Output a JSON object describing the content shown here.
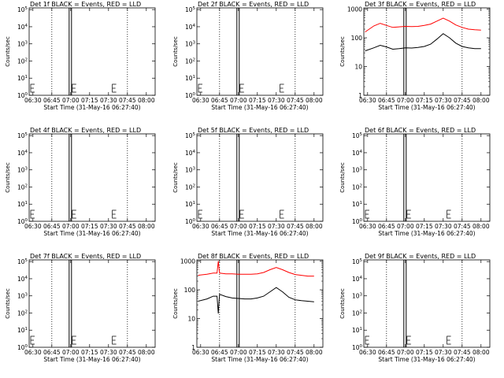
{
  "figure": {
    "xlabel": "Start Time (31-May-16 06:27:40)",
    "ylabel": "Counts/sec",
    "x_ticks": [
      "06:30",
      "06:45",
      "07:00",
      "07:15",
      "07:30",
      "07:45",
      "08:00"
    ],
    "colors": {
      "events": "#000000",
      "lld": "#ff0000",
      "axes": "#000000",
      "background": "#ffffff"
    }
  },
  "chart_data": [
    {
      "type": "line",
      "detector": "1f",
      "title": "Det 1f BLACK = Events, RED = LLD",
      "ylabel": "Counts/sec",
      "xlabel": "Start Time (31-May-16 06:27:40)",
      "y_scale": "log",
      "y_ticks": [
        "10^0",
        "10^1",
        "10^2",
        "10^3",
        "10^4",
        "10^5"
      ],
      "has_data": false,
      "series": []
    },
    {
      "type": "line",
      "detector": "2f",
      "title": "Det 2f BLACK = Events, RED = LLD",
      "ylabel": "Counts/sec",
      "xlabel": "Start Time (31-May-16 06:27:40)",
      "y_scale": "log",
      "y_ticks": [
        "10^0",
        "10^1",
        "10^2",
        "10^3",
        "10^4",
        "10^5"
      ],
      "has_data": false,
      "series": []
    },
    {
      "type": "line",
      "detector": "3f",
      "title": "Det 3f BLACK = Events, RED = LLD",
      "ylabel": "Counts/sec",
      "xlabel": "Start Time (31-May-16 06:27:40)",
      "y_scale": "log",
      "y_ticks": [
        "1",
        "10",
        "100",
        "1000"
      ],
      "has_data": true,
      "series": [
        {
          "name": "LLD",
          "color": "#ff0000",
          "x": [
            "06:28",
            "06:35",
            "06:40",
            "06:45",
            "06:50",
            "06:55",
            "07:00",
            "07:05",
            "07:10",
            "07:15",
            "07:20",
            "07:25",
            "07:30",
            "07:35",
            "07:40",
            "07:45",
            "07:50",
            "07:55",
            "08:00"
          ],
          "y": [
            160,
            260,
            320,
            270,
            230,
            240,
            250,
            245,
            250,
            270,
            300,
            380,
            480,
            380,
            280,
            230,
            200,
            190,
            185
          ]
        },
        {
          "name": "Events",
          "color": "#000000",
          "x": [
            "06:28",
            "06:35",
            "06:40",
            "06:45",
            "06:50",
            "06:55",
            "07:00",
            "07:05",
            "07:10",
            "07:15",
            "07:20",
            "07:25",
            "07:30",
            "07:35",
            "07:40",
            "07:45",
            "07:50",
            "07:55",
            "08:00"
          ],
          "y": [
            35,
            45,
            55,
            48,
            40,
            42,
            45,
            44,
            46,
            50,
            60,
            90,
            140,
            100,
            65,
            50,
            45,
            42,
            42
          ]
        }
      ]
    },
    {
      "type": "line",
      "detector": "4f",
      "title": "Det 4f BLACK = Events, RED = LLD",
      "ylabel": "Counts/sec",
      "xlabel": "Start Time (31-May-16 06:27:40)",
      "y_scale": "log",
      "y_ticks": [
        "10^0",
        "10^1",
        "10^2",
        "10^3",
        "10^4",
        "10^5"
      ],
      "has_data": false,
      "series": []
    },
    {
      "type": "line",
      "detector": "5f",
      "title": "Det 5f BLACK = Events, RED = LLD",
      "ylabel": "Counts/sec",
      "xlabel": "Start Time (31-May-16 06:27:40)",
      "y_scale": "log",
      "y_ticks": [
        "10^0",
        "10^1",
        "10^2",
        "10^3",
        "10^4",
        "10^5"
      ],
      "has_data": false,
      "series": []
    },
    {
      "type": "line",
      "detector": "6f",
      "title": "Det 6f BLACK = Events, RED = LLD",
      "ylabel": "Counts/sec",
      "xlabel": "Start Time (31-May-16 06:27:40)",
      "y_scale": "log",
      "y_ticks": [
        "10^0",
        "10^1",
        "10^2",
        "10^3",
        "10^4",
        "10^5"
      ],
      "has_data": false,
      "series": []
    },
    {
      "type": "line",
      "detector": "7f",
      "title": "Det 7f BLACK = Events, RED = LLD",
      "ylabel": "Counts/sec",
      "xlabel": "Start Time (31-May-16 06:27:40)",
      "y_scale": "log",
      "y_ticks": [
        "10^0",
        "10^1",
        "10^2",
        "10^3",
        "10^4",
        "10^5"
      ],
      "has_data": false,
      "series": []
    },
    {
      "type": "line",
      "detector": "8f",
      "title": "Det 8f BLACK = Events, RED = LLD",
      "ylabel": "Counts/sec",
      "xlabel": "Start Time (31-May-16 06:27:40)",
      "y_scale": "log",
      "y_ticks": [
        "1",
        "10",
        "100",
        "1000"
      ],
      "has_data": true,
      "series": [
        {
          "name": "LLD",
          "color": "#ff0000",
          "x": [
            "06:28",
            "06:35",
            "06:40",
            "06:43",
            "06:44",
            "06:45",
            "06:50",
            "06:55",
            "07:00",
            "07:05",
            "07:10",
            "07:15",
            "07:20",
            "07:25",
            "07:30",
            "07:35",
            "07:40",
            "07:45",
            "07:50",
            "07:55",
            "08:00"
          ],
          "y": [
            320,
            350,
            380,
            380,
            1000,
            380,
            360,
            360,
            350,
            350,
            350,
            360,
            400,
            500,
            600,
            500,
            400,
            340,
            320,
            300,
            300
          ]
        },
        {
          "name": "Events",
          "color": "#000000",
          "x": [
            "06:28",
            "06:35",
            "06:40",
            "06:43",
            "06:44",
            "06:45",
            "06:50",
            "06:55",
            "07:00",
            "07:05",
            "07:10",
            "07:15",
            "07:20",
            "07:25",
            "07:30",
            "07:35",
            "07:40",
            "07:45",
            "07:50",
            "07:55",
            "08:00"
          ],
          "y": [
            40,
            48,
            60,
            60,
            15,
            70,
            58,
            52,
            50,
            48,
            48,
            52,
            60,
            85,
            120,
            85,
            55,
            45,
            42,
            40,
            38
          ]
        }
      ]
    },
    {
      "type": "line",
      "detector": "9f",
      "title": "Det 9f BLACK = Events, RED = LLD",
      "ylabel": "Counts/sec",
      "xlabel": "Start Time (31-May-16 06:27:40)",
      "y_scale": "log",
      "y_ticks": [
        "10^0",
        "10^1",
        "10^2",
        "10^3",
        "10^4",
        "10^5"
      ],
      "has_data": false,
      "series": []
    }
  ]
}
